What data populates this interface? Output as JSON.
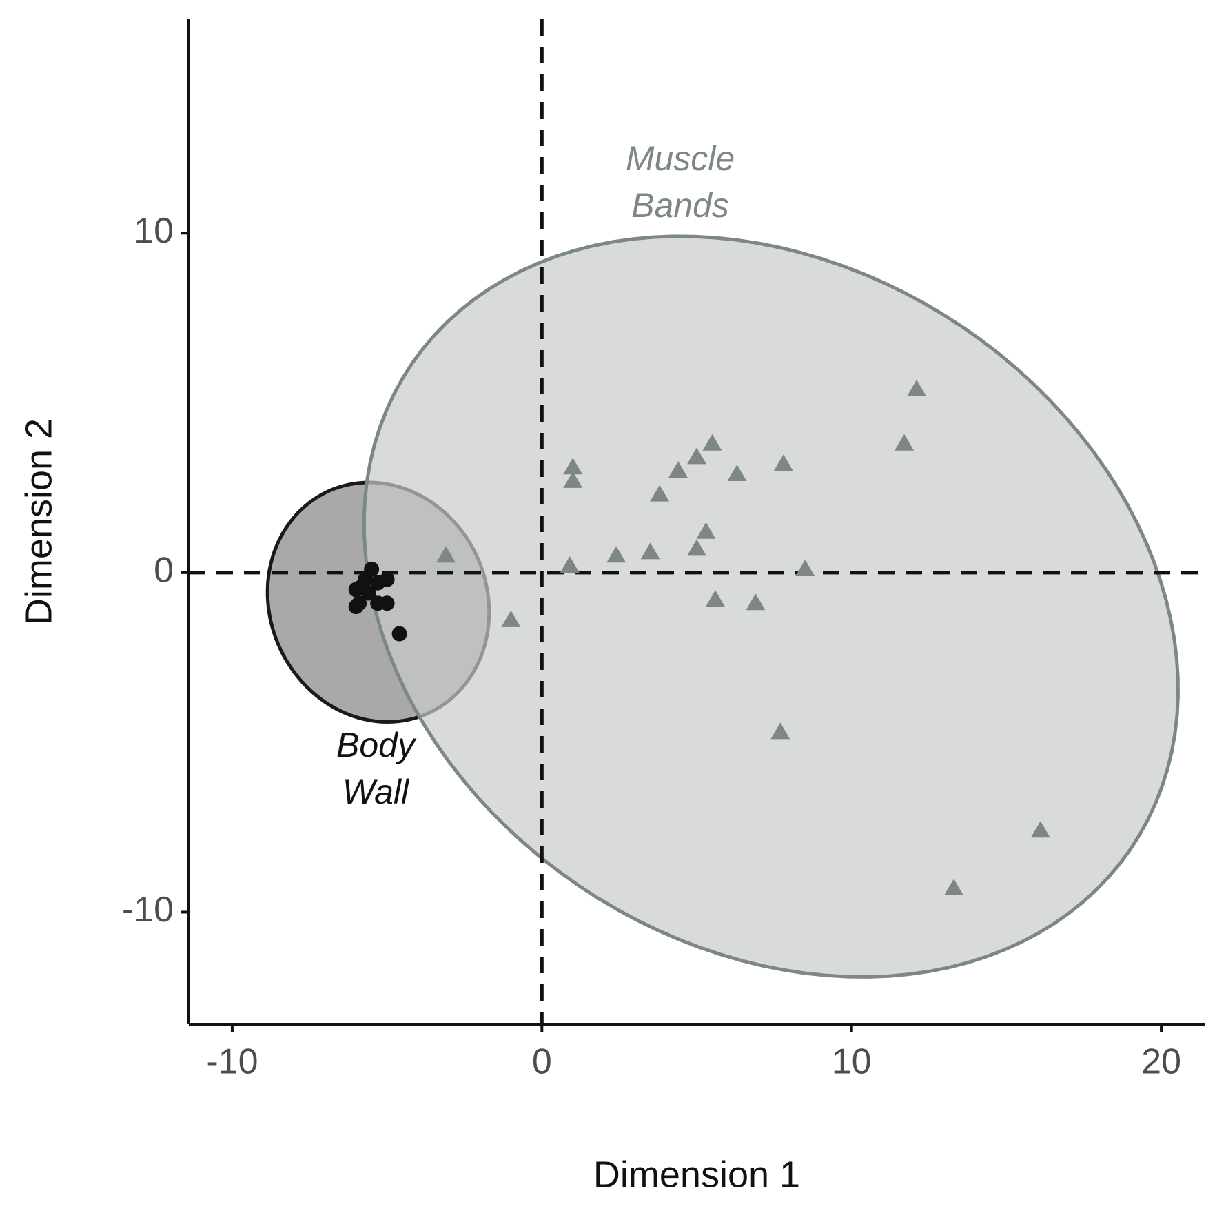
{
  "chart_data": {
    "type": "scatter",
    "x_label": "Dimension 1",
    "y_label": "Dimension 2",
    "xlim": [
      -11.4,
      21.4
    ],
    "ylim": [
      -13.3,
      16.3
    ],
    "xticks": [
      -10,
      0,
      10,
      20
    ],
    "yticks": [
      -10,
      0,
      10
    ],
    "hlines": [
      0
    ],
    "vlines": [
      0
    ],
    "series": [
      {
        "marker": "circle",
        "color": "#111111",
        "ellipse": {
          "center": [
            -5.28,
            -0.87
          ],
          "radii": [
            3.7,
            3.4
          ],
          "angle": -40,
          "fill": "#9a9a9a",
          "stroke": "#1a1a1a"
        },
        "x": [
          -5.5,
          -5.8,
          -6.0,
          -5.9,
          -6.0,
          -5.3,
          -5.0,
          -5.0,
          -5.3,
          -4.6,
          -5.6,
          -5.7
        ],
        "y": [
          0.1,
          -0.4,
          -0.5,
          -0.9,
          -1.0,
          -0.3,
          -0.2,
          -0.9,
          -0.9,
          -1.8,
          -0.6,
          -0.2
        ]
      },
      {
        "marker": "triangle",
        "color": "#7d8886",
        "ellipse": {
          "center": [
            7.4,
            -1.0
          ],
          "radii": [
            13.7,
            10.2
          ],
          "angle": -25,
          "fill": "#c9cccb",
          "stroke": "#7d8886"
        },
        "x": [
          12.1,
          11.7,
          5.5,
          5.0,
          4.4,
          1.0,
          1.0,
          6.3,
          7.8,
          3.8,
          5.3,
          5.0,
          -3.1,
          2.4,
          3.5,
          0.9,
          8.5,
          5.6,
          6.9,
          -1.0,
          7.7,
          16.1,
          13.3
        ],
        "y": [
          5.4,
          3.8,
          3.8,
          3.4,
          3.0,
          3.1,
          2.7,
          2.9,
          3.2,
          2.3,
          1.2,
          0.7,
          0.5,
          0.5,
          0.6,
          0.2,
          0.1,
          -0.8,
          -0.9,
          -1.4,
          -4.7,
          -7.6,
          -9.3
        ]
      }
    ],
    "annotations": [
      {
        "lines": [
          "Body",
          "Wall"
        ],
        "color": "#111111"
      },
      {
        "lines": [
          "Muscle",
          "Bands"
        ],
        "color": "#7d8886"
      }
    ]
  }
}
